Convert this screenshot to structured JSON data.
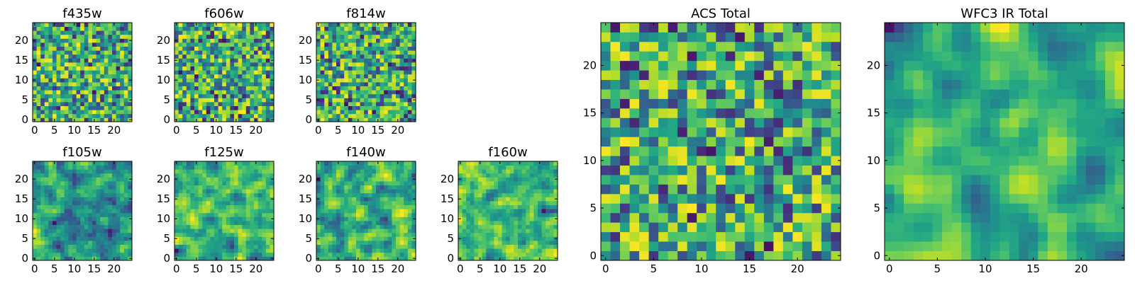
{
  "figure": {
    "description_free": true
  },
  "chart_data": [
    {
      "type": "heatmap",
      "title": "f435w",
      "colormap": "viridis",
      "grid_size": [
        25,
        25
      ],
      "xlim": [
        0,
        24
      ],
      "ylim": [
        0,
        24
      ],
      "x_ticks": [
        0,
        5,
        10,
        15,
        20
      ],
      "y_ticks": [
        0,
        5,
        10,
        15,
        20
      ],
      "seed": 11,
      "smooth": 0
    },
    {
      "type": "heatmap",
      "title": "f606w",
      "colormap": "viridis",
      "grid_size": [
        25,
        25
      ],
      "xlim": [
        0,
        24
      ],
      "ylim": [
        0,
        24
      ],
      "x_ticks": [
        0,
        5,
        10,
        15,
        20
      ],
      "y_ticks": [
        0,
        5,
        10,
        15,
        20
      ],
      "seed": 23,
      "smooth": 0
    },
    {
      "type": "heatmap",
      "title": "f814w",
      "colormap": "viridis",
      "grid_size": [
        25,
        25
      ],
      "xlim": [
        0,
        24
      ],
      "ylim": [
        0,
        24
      ],
      "x_ticks": [
        0,
        5,
        10,
        15,
        20
      ],
      "y_ticks": [
        0,
        5,
        10,
        15,
        20
      ],
      "seed": 37,
      "smooth": 0
    },
    {
      "type": "heatmap",
      "title": "f105w",
      "colormap": "viridis",
      "grid_size": [
        25,
        25
      ],
      "xlim": [
        0,
        24
      ],
      "ylim": [
        0,
        24
      ],
      "x_ticks": [
        0,
        5,
        10,
        15,
        20
      ],
      "y_ticks": [
        0,
        5,
        10,
        15,
        20
      ],
      "seed": 41,
      "smooth": 1
    },
    {
      "type": "heatmap",
      "title": "f125w",
      "colormap": "viridis",
      "grid_size": [
        25,
        25
      ],
      "xlim": [
        0,
        24
      ],
      "ylim": [
        0,
        24
      ],
      "x_ticks": [
        0,
        5,
        10,
        15,
        20
      ],
      "y_ticks": [
        0,
        5,
        10,
        15,
        20
      ],
      "seed": 53,
      "smooth": 1
    },
    {
      "type": "heatmap",
      "title": "f140w",
      "colormap": "viridis",
      "grid_size": [
        25,
        25
      ],
      "xlim": [
        0,
        24
      ],
      "ylim": [
        0,
        24
      ],
      "x_ticks": [
        0,
        5,
        10,
        15,
        20
      ],
      "y_ticks": [
        0,
        5,
        10,
        15,
        20
      ],
      "seed": 67,
      "smooth": 1
    },
    {
      "type": "heatmap",
      "title": "f160w",
      "colormap": "viridis",
      "grid_size": [
        25,
        25
      ],
      "xlim": [
        0,
        24
      ],
      "ylim": [
        0,
        24
      ],
      "x_ticks": [
        0,
        5,
        10,
        15,
        20
      ],
      "y_ticks": [
        0,
        5,
        10,
        15,
        20
      ],
      "seed": 79,
      "smooth": 1
    },
    {
      "type": "heatmap",
      "title": "ACS Total",
      "colormap": "viridis",
      "grid_size": [
        25,
        25
      ],
      "xlim": [
        0,
        24
      ],
      "ylim": [
        0,
        24
      ],
      "x_ticks": [
        0,
        5,
        10,
        15,
        20
      ],
      "y_ticks": [
        0,
        5,
        10,
        15,
        20
      ],
      "seed": 83,
      "smooth": 0
    },
    {
      "type": "heatmap",
      "title": "WFC3 IR Total",
      "colormap": "viridis",
      "grid_size": [
        25,
        25
      ],
      "xlim": [
        0,
        24
      ],
      "ylim": [
        0,
        24
      ],
      "x_ticks": [
        0,
        5,
        10,
        15,
        20
      ],
      "y_ticks": [
        0,
        5,
        10,
        15,
        20
      ],
      "seed": 97,
      "smooth": 2
    }
  ]
}
